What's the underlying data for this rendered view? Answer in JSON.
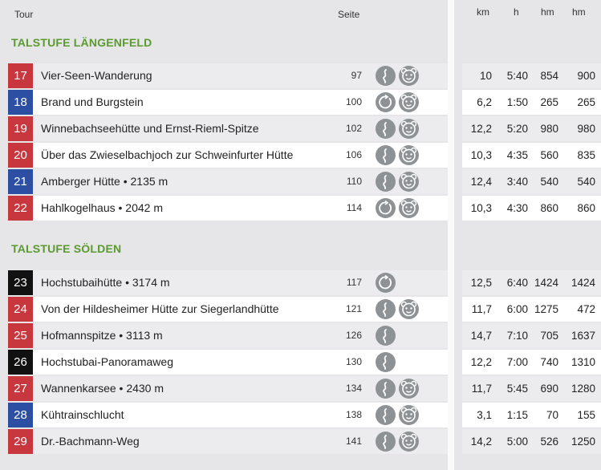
{
  "headers": {
    "tour": "Tour",
    "seite": "Seite",
    "km": "km",
    "h": "h",
    "hm1": "hm",
    "hm2": "hm"
  },
  "sections": [
    {
      "title": "TALSTUFE LÄNGENFELD",
      "rows": [
        {
          "num": "17",
          "color": "red",
          "name": "Vier-Seen-Wanderung",
          "page": "97",
          "icons": [
            "route-icon",
            "bear-icon"
          ],
          "km": "10",
          "h": "5:40",
          "hm_up": "854",
          "hm_down": "900"
        },
        {
          "num": "18",
          "color": "blue",
          "name": "Brand und Burgstein",
          "page": "100",
          "icons": [
            "loop-icon",
            "bear-icon"
          ],
          "km": "6,2",
          "h": "1:50",
          "hm_up": "265",
          "hm_down": "265"
        },
        {
          "num": "19",
          "color": "red",
          "name": "Winnebachseehütte und Ernst-Rieml-Spitze",
          "page": "102",
          "icons": [
            "route-icon",
            "bear-icon"
          ],
          "km": "12,2",
          "h": "5:20",
          "hm_up": "980",
          "hm_down": "980"
        },
        {
          "num": "20",
          "color": "red",
          "name": "Über das Zwieselbachjoch zur Schweinfurter Hütte",
          "page": "106",
          "icons": [
            "route-icon",
            "bear-icon"
          ],
          "km": "10,3",
          "h": "4:35",
          "hm_up": "560",
          "hm_down": "835"
        },
        {
          "num": "21",
          "color": "blue",
          "name": "Amberger Hütte • 2135 m",
          "page": "110",
          "icons": [
            "route-icon",
            "bear-icon"
          ],
          "km": "12,4",
          "h": "3:40",
          "hm_up": "540",
          "hm_down": "540"
        },
        {
          "num": "22",
          "color": "red",
          "name": "Hahlkogelhaus • 2042 m",
          "page": "114",
          "icons": [
            "loop-icon",
            "bear-icon"
          ],
          "km": "10,3",
          "h": "4:30",
          "hm_up": "860",
          "hm_down": "860"
        }
      ]
    },
    {
      "title": "TALSTUFE SÖLDEN",
      "rows": [
        {
          "num": "23",
          "color": "black",
          "name": "Hochstubaihütte • 3174 m",
          "page": "117",
          "icons": [
            "loop-icon"
          ],
          "km": "12,5",
          "h": "6:40",
          "hm_up": "1424",
          "hm_down": "1424"
        },
        {
          "num": "24",
          "color": "red",
          "name": "Von der Hildesheimer Hütte zur Siegerlandhütte",
          "page": "121",
          "icons": [
            "route-icon",
            "bear-icon"
          ],
          "km": "11,7",
          "h": "6:00",
          "hm_up": "1275",
          "hm_down": "472"
        },
        {
          "num": "25",
          "color": "red",
          "name": "Hofmannspitze • 3113 m",
          "page": "126",
          "icons": [
            "route-icon"
          ],
          "km": "14,7",
          "h": "7:10",
          "hm_up": "705",
          "hm_down": "1637"
        },
        {
          "num": "26",
          "color": "black",
          "name": "Hochstubai-Panoramaweg",
          "page": "130",
          "icons": [
            "route-icon"
          ],
          "km": "12,2",
          "h": "7:00",
          "hm_up": "740",
          "hm_down": "1310"
        },
        {
          "num": "27",
          "color": "red",
          "name": "Wannenkarsee • 2430 m",
          "page": "134",
          "icons": [
            "route-icon",
            "bear-icon"
          ],
          "km": "11,7",
          "h": "5:45",
          "hm_up": "690",
          "hm_down": "1280"
        },
        {
          "num": "28",
          "color": "blue",
          "name": "Kühtrainschlucht",
          "page": "138",
          "icons": [
            "route-icon",
            "bear-icon"
          ],
          "km": "3,1",
          "h": "1:15",
          "hm_up": "70",
          "hm_down": "155"
        },
        {
          "num": "29",
          "color": "red",
          "name": "Dr.-Bachmann-Weg",
          "page": "141",
          "icons": [
            "route-icon",
            "bear-icon"
          ],
          "km": "14,2",
          "h": "5:00",
          "hm_up": "526",
          "hm_down": "1250"
        }
      ]
    }
  ]
}
